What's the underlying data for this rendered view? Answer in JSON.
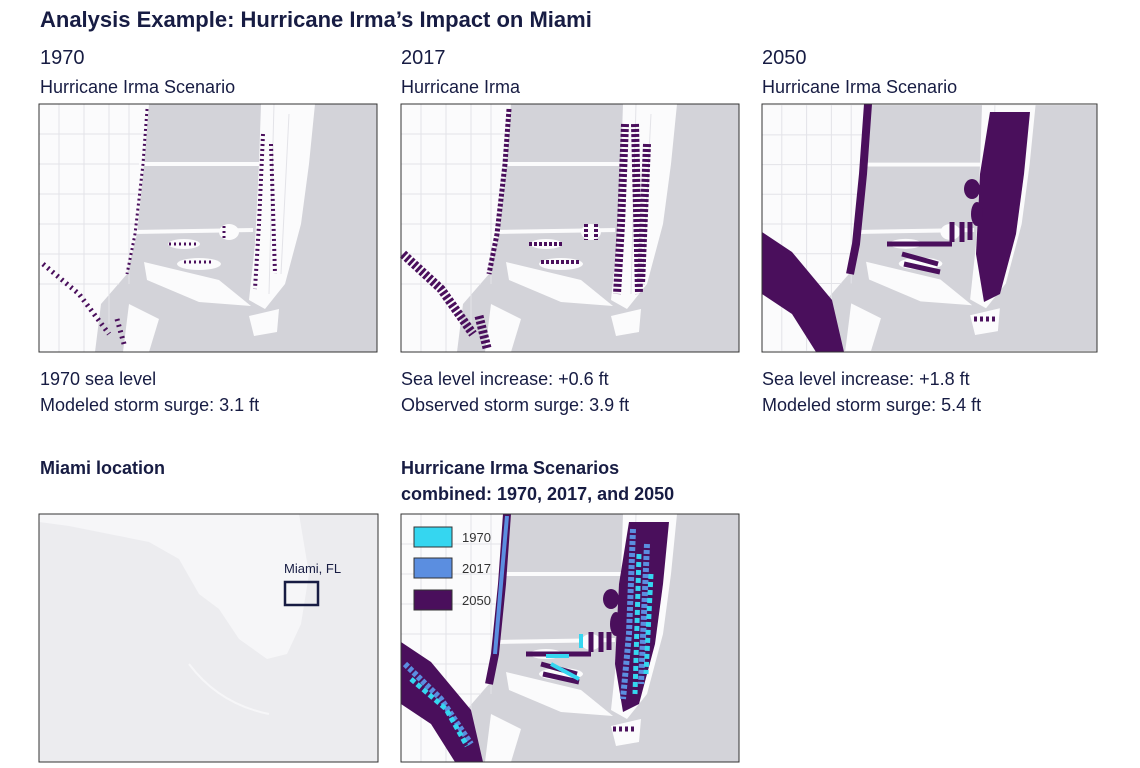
{
  "title": "Analysis Example: Hurricane Irma’s Impact on Miami",
  "panels": [
    {
      "year": "1970",
      "subtitle": "Hurricane Irma Scenario",
      "caption": [
        "1970 sea level",
        "Modeled storm surge: 3.1 ft"
      ]
    },
    {
      "year": "2017",
      "subtitle": "Hurricane Irma",
      "caption": [
        "Sea level increase: +0.6 ft",
        "Observed storm surge: 3.9 ft"
      ]
    },
    {
      "year": "2050",
      "subtitle": "Hurricane Irma Scenario",
      "caption": [
        "Sea level increase: +1.8 ft",
        "Modeled storm surge: 5.4 ft"
      ]
    }
  ],
  "location": {
    "title": "Miami location",
    "label": "Miami, FL"
  },
  "combined": {
    "title": [
      "Hurricane Irma Scenarios",
      "combined: 1970, 2017, and 2050"
    ],
    "legend": [
      {
        "label": "1970",
        "color": "#35d6f0"
      },
      {
        "label": "2017",
        "color": "#5b8ee0"
      },
      {
        "label": "2050",
        "color": "#4a0f5c"
      }
    ]
  }
}
